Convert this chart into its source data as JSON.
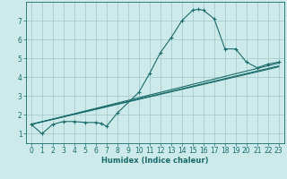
{
  "xlabel": "Humidex (Indice chaleur)",
  "background_color": "#cceaea",
  "grid_color": "#aacccc",
  "line_color": "#1a6b6b",
  "xlim": [
    -0.5,
    23.5
  ],
  "ylim": [
    0.5,
    8.0
  ],
  "yticks": [
    1,
    2,
    3,
    4,
    5,
    6,
    7
  ],
  "xticks": [
    0,
    1,
    2,
    3,
    4,
    5,
    6,
    7,
    8,
    9,
    10,
    11,
    12,
    13,
    14,
    15,
    16,
    17,
    18,
    19,
    20,
    21,
    22,
    23
  ],
  "curve1_x": [
    0,
    1,
    2,
    3,
    4,
    5,
    6,
    6.5,
    7,
    8,
    10,
    11,
    12,
    13,
    14,
    15,
    15.5,
    16,
    17,
    18,
    19,
    20,
    21,
    22,
    23
  ],
  "curve1_y": [
    1.5,
    1.0,
    1.5,
    1.65,
    1.65,
    1.6,
    1.6,
    1.55,
    1.4,
    2.1,
    3.2,
    4.2,
    5.3,
    6.1,
    7.0,
    7.55,
    7.6,
    7.55,
    7.1,
    5.5,
    5.5,
    4.8,
    4.5,
    4.7,
    4.8
  ],
  "curve2_x": [
    0,
    23
  ],
  "curve2_y": [
    1.5,
    4.75
  ],
  "curve3_x": [
    0,
    23
  ],
  "curve3_y": [
    1.5,
    4.6
  ],
  "curve4_x": [
    0,
    23
  ],
  "curve4_y": [
    1.5,
    4.55
  ]
}
